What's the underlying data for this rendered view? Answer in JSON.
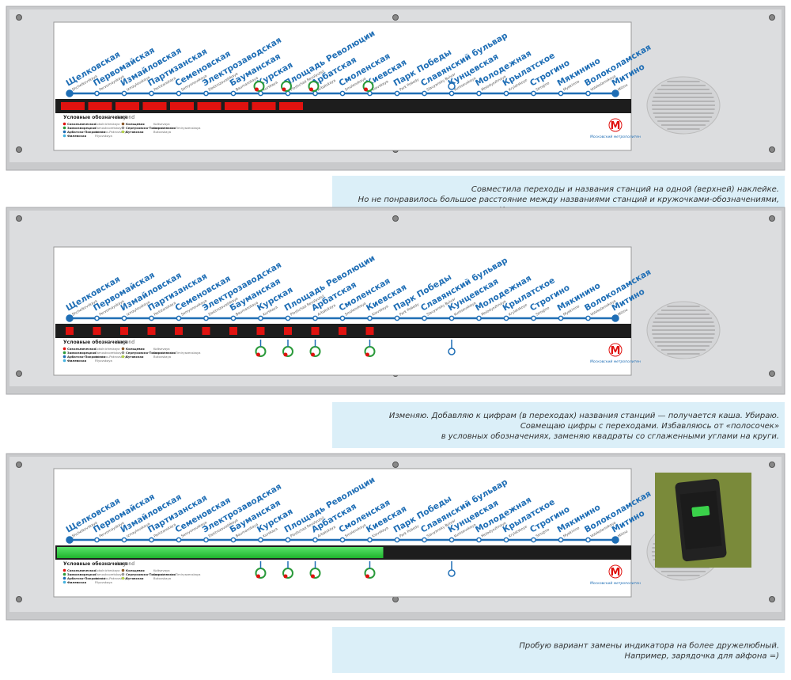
{
  "stations": [
    {
      "name": "Щелковская",
      "name_en": "Shchelkovskaya"
    },
    {
      "name": "Первомайская",
      "name_en": "Pervomayskaya"
    },
    {
      "name": "Измайловская",
      "name_en": "Izmaylovskaya"
    },
    {
      "name": "Партизанская",
      "name_en": "Partizanskaya"
    },
    {
      "name": "Семеновская",
      "name_en": "Semyonovskaya"
    },
    {
      "name": "Электрозаводская",
      "name_en": "Elektrozavodskaya"
    },
    {
      "name": "Бауманская",
      "name_en": "Baumanskaya"
    },
    {
      "name": "Курская",
      "name_en": "Kurskaya"
    },
    {
      "name": "Площадь Революции",
      "name_en": "Ploshchad Revolyutsii"
    },
    {
      "name": "Арбатская",
      "name_en": "Arbatskaya"
    },
    {
      "name": "Смоленская",
      "name_en": "Smolenskaya"
    },
    {
      "name": "Киевская",
      "name_en": "Kievskaya"
    },
    {
      "name": "Парк Победы",
      "name_en": "Park Pobedy"
    },
    {
      "name": "Славянский бульвар",
      "name_en": "Slavyansky Bulvar"
    },
    {
      "name": "Кунцевская",
      "name_en": "Kuntsevskaya"
    },
    {
      "name": "Молодежная",
      "name_en": "Molodyozhnaya"
    },
    {
      "name": "Крылатское",
      "name_en": "Krylatskoye"
    },
    {
      "name": "Строгино",
      "name_en": "Strogino"
    },
    {
      "name": "Мякинино",
      "name_en": "Myakinino"
    },
    {
      "name": "Волоколамская",
      "name_en": "Volokolamskaya"
    },
    {
      "name": "Митино",
      "name_en": "Mitino"
    }
  ],
  "legend": {
    "title": "Условные обозначения",
    "title_en": "Legend",
    "items": [
      {
        "name": "Сокольническая",
        "name_en": "Sokolnicheskaya"
      },
      {
        "name": "Замоскворецкая",
        "name_en": "Zamoskvoretskaya"
      },
      {
        "name": "Арбатско-Покровская",
        "name_en": "Arbatsko-Pokrovskaya"
      },
      {
        "name": "Филевская",
        "name_en": "Filyovskaya"
      },
      {
        "name": "Кольцевая",
        "name_en": "Koltsevaya"
      },
      {
        "name": "Серпуховско-Тимирязевская",
        "name_en": "Serpukhovsko-Timiryazevskaya"
      },
      {
        "name": "Бутовская",
        "name_en": "Butovskaya"
      }
    ]
  },
  "logo": {
    "letter": "М",
    "text": "Московский метрополитен"
  },
  "captions": [
    [
      "Совместила переходы и названия станций на одной (верхней) наклейке.",
      "Но не понравилось большое расстояние между названиями станций  и кружочками-обозначениями,",
      "а также маленькие поля сверху. Индикаторы кажутся слишком «здоровенными»  и «краснючими» ."
    ],
    [
      "Изменяю. Добавляю к цифрам (в переходах) названия станций — получается каша. Убираю.",
      "Совмещаю цифры с переходами. Избавляюсь от «полосочек»",
      "в условных обозначениях, заменяю квадраты со сглаженными углами на круги."
    ],
    [
      "Пробую вариант замены индикатора на более дружелюбный.",
      "Например, зарядочка для айфона =)"
    ]
  ]
}
